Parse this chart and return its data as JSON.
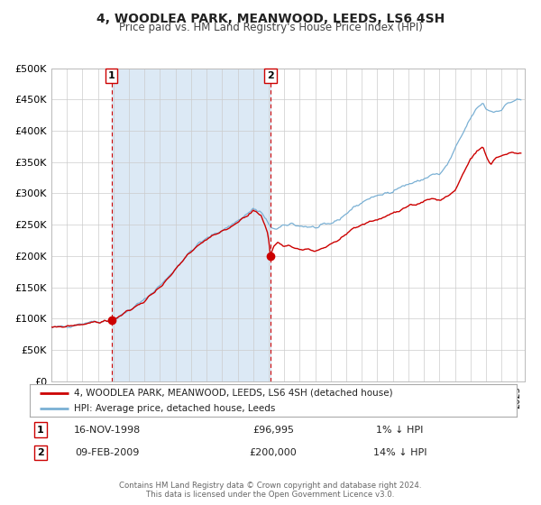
{
  "title": "4, WOODLEA PARK, MEANWOOD, LEEDS, LS6 4SH",
  "subtitle": "Price paid vs. HM Land Registry's House Price Index (HPI)",
  "background_color": "#ffffff",
  "plot_bg_color": "#ffffff",
  "shaded_region_color": "#dce9f5",
  "grid_color": "#cccccc",
  "hpi_line_color": "#7ab0d4",
  "price_line_color": "#cc0000",
  "marker_color": "#cc0000",
  "dashed_line_color": "#cc0000",
  "legend_label_red": "4, WOODLEA PARK, MEANWOOD, LEEDS, LS6 4SH (detached house)",
  "legend_label_blue": "HPI: Average price, detached house, Leeds",
  "ann1_date": "16-NOV-1998",
  "ann1_price": "£96,995",
  "ann1_hpi": "1% ↓ HPI",
  "ann2_date": "09-FEB-2009",
  "ann2_price": "£200,000",
  "ann2_hpi": "14% ↓ HPI",
  "point1_x": 1998.88,
  "point1_y": 96995,
  "point2_x": 2009.11,
  "point2_y": 200000,
  "vline1_x": 1998.88,
  "vline2_x": 2009.11,
  "shade_x1": 1998.88,
  "shade_x2": 2009.11,
  "xmin": 1995.0,
  "xmax": 2025.5,
  "ymin": 0,
  "ymax": 500000,
  "yticks": [
    0,
    50000,
    100000,
    150000,
    200000,
    250000,
    300000,
    350000,
    400000,
    450000,
    500000
  ],
  "ytick_labels": [
    "£0",
    "£50K",
    "£100K",
    "£150K",
    "£200K",
    "£250K",
    "£300K",
    "£350K",
    "£400K",
    "£450K",
    "£500K"
  ],
  "footer_text": "Contains HM Land Registry data © Crown copyright and database right 2024.\nThis data is licensed under the Open Government Licence v3.0."
}
